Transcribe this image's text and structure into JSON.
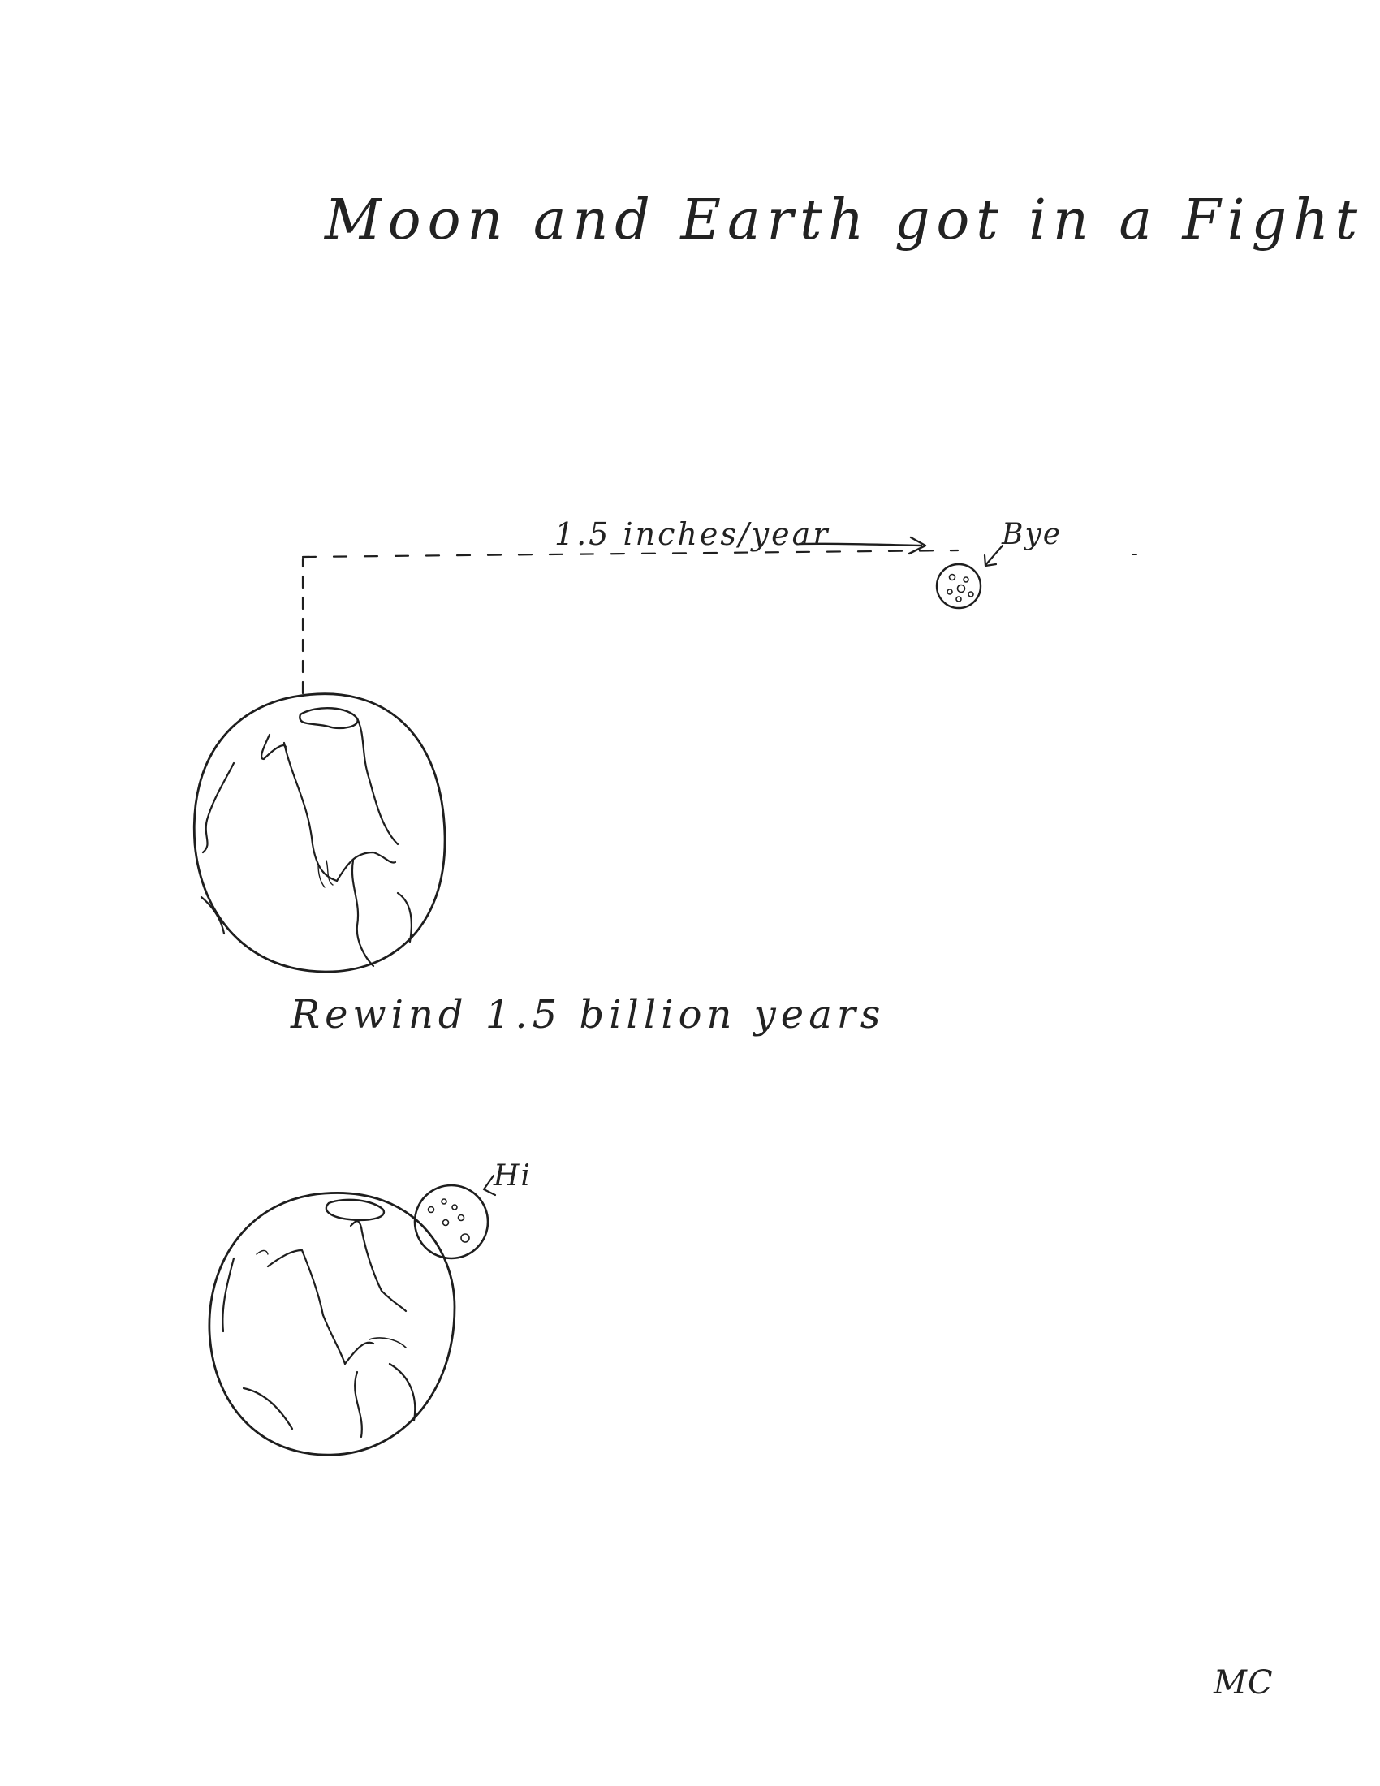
{
  "drawing": {
    "title": "Moon and Earth got in a Fight",
    "rate_label": "1.5 inches/year",
    "bye_label": "Bye",
    "rewind_label": "Rewind 1.5 billion years",
    "hi_label": "Hi",
    "signature": "MC"
  },
  "colors": {
    "ink": "#1e1e1e",
    "paper": "#ffffff"
  }
}
